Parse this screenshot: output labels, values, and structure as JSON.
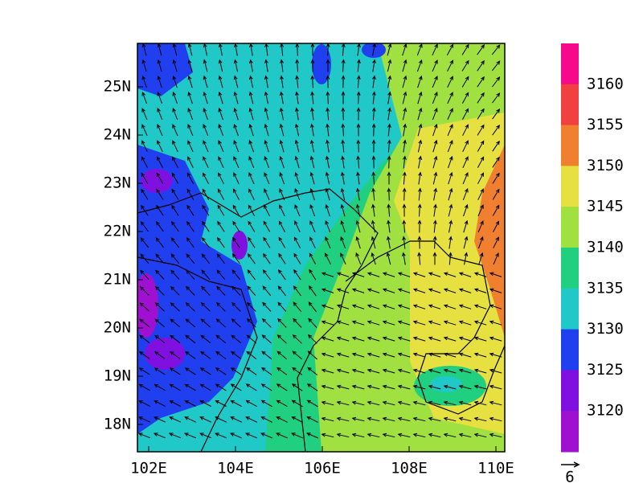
{
  "map": {
    "x_tick_labels": [
      "102E",
      "104E",
      "106E",
      "108E",
      "110E"
    ],
    "y_tick_labels": [
      "25N",
      "24N",
      "23N",
      "22N",
      "21N",
      "20N",
      "19N",
      "18N"
    ],
    "colorbar": {
      "levels": [
        3160,
        3155,
        3150,
        3145,
        3140,
        3135,
        3130,
        3125,
        3120
      ],
      "colors": [
        "#f50a8c",
        "#f04040",
        "#f08030",
        "#e6e040",
        "#a0e040",
        "#20d080",
        "#20c8c8",
        "#2040f0",
        "#8010e0",
        "#a010d0"
      ]
    },
    "reference_vector": "6"
  }
}
